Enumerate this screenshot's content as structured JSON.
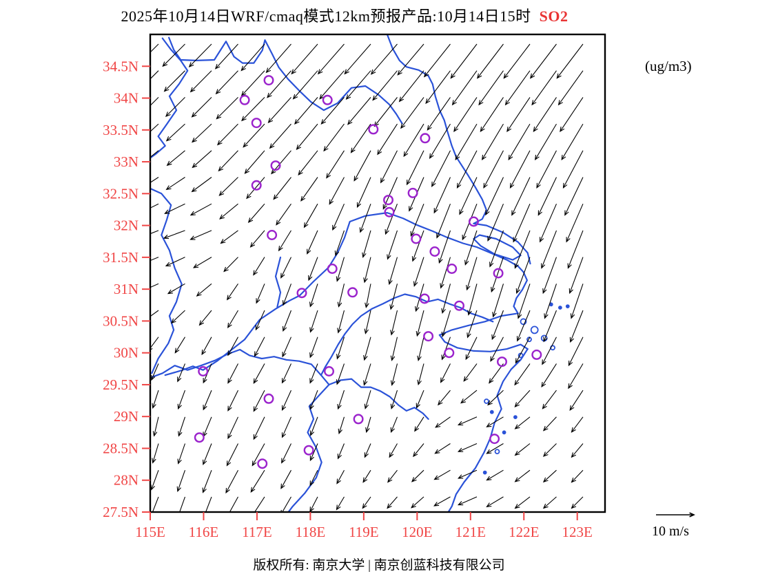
{
  "title": {
    "main": "2025年10月14日WRF/cmaq模式12km预报产品:10月14日15时",
    "species": "SO2"
  },
  "units_label": "(ug/m3)",
  "wind_legend": {
    "label": "10 m/s",
    "speed_m_s": 10
  },
  "footer": "版权所有: 南京大学 | 南京创蓝科技有限公司",
  "colors": {
    "axis_label": "#f04545",
    "species": "#e93434",
    "coast": "#2a52d8",
    "station": "#9b23cc",
    "arrow": "#000000",
    "frame": "#000000"
  },
  "map_extent": {
    "lon_min": 115,
    "lon_max": 123.52,
    "lat_min": 27.5,
    "lat_max": 35.0
  },
  "axes": {
    "lat_ticks": [
      {
        "value": 34.5,
        "label": "34.5N"
      },
      {
        "value": 34.0,
        "label": "34N"
      },
      {
        "value": 33.5,
        "label": "33.5N"
      },
      {
        "value": 33.0,
        "label": "33N"
      },
      {
        "value": 32.5,
        "label": "32.5N"
      },
      {
        "value": 32.0,
        "label": "32N"
      },
      {
        "value": 31.5,
        "label": "31.5N"
      },
      {
        "value": 31.0,
        "label": "31N"
      },
      {
        "value": 30.5,
        "label": "30.5N"
      },
      {
        "value": 30.0,
        "label": "30N"
      },
      {
        "value": 29.5,
        "label": "29.5N"
      },
      {
        "value": 29.0,
        "label": "29N"
      },
      {
        "value": 28.5,
        "label": "28.5N"
      },
      {
        "value": 28.0,
        "label": "28N"
      },
      {
        "value": 27.5,
        "label": "27.5N"
      }
    ],
    "lon_ticks": [
      {
        "value": 115,
        "label": "115E"
      },
      {
        "value": 116,
        "label": "116E"
      },
      {
        "value": 117,
        "label": "117E"
      },
      {
        "value": 118,
        "label": "118E"
      },
      {
        "value": 119,
        "label": "119E"
      },
      {
        "value": 120,
        "label": "120E"
      },
      {
        "value": 121,
        "label": "121E"
      },
      {
        "value": 122,
        "label": "122E"
      },
      {
        "value": 123,
        "label": "123E"
      }
    ]
  },
  "stations": [
    [
      117.22,
      34.28
    ],
    [
      116.77,
      33.97
    ],
    [
      118.32,
      33.97
    ],
    [
      119.18,
      33.51
    ],
    [
      120.15,
      33.37
    ],
    [
      116.99,
      33.61
    ],
    [
      117.35,
      32.94
    ],
    [
      116.99,
      32.63
    ],
    [
      119.92,
      32.51
    ],
    [
      119.46,
      32.4
    ],
    [
      119.48,
      32.21
    ],
    [
      121.06,
      32.06
    ],
    [
      117.28,
      31.85
    ],
    [
      119.98,
      31.79
    ],
    [
      120.33,
      31.59
    ],
    [
      120.65,
      31.32
    ],
    [
      121.52,
      31.25
    ],
    [
      118.41,
      31.32
    ],
    [
      120.14,
      30.85
    ],
    [
      120.79,
      30.74
    ],
    [
      117.84,
      30.94
    ],
    [
      118.79,
      30.95
    ],
    [
      120.21,
      30.26
    ],
    [
      120.6,
      30.0
    ],
    [
      122.24,
      29.97
    ],
    [
      121.59,
      29.86
    ],
    [
      115.99,
      29.71
    ],
    [
      118.35,
      29.71
    ],
    [
      117.22,
      29.28
    ],
    [
      118.9,
      28.96
    ],
    [
      115.92,
      28.67
    ],
    [
      117.97,
      28.47
    ],
    [
      117.1,
      28.26
    ],
    [
      121.45,
      28.65
    ]
  ],
  "wind_field": {
    "lon_min": 115,
    "lon_step": 1,
    "lat_max": 35,
    "lat_step": -1,
    "u": [
      [
        -6,
        -6,
        -6,
        -7,
        -7,
        -7,
        -7,
        -7,
        -7,
        -7
      ],
      [
        -5,
        -5,
        -6,
        -6,
        -6,
        -6,
        -6,
        -6,
        -6,
        -6
      ],
      [
        -4,
        -5,
        -5,
        -5,
        -4,
        -4,
        -5,
        -5,
        -5,
        -5
      ],
      [
        -5,
        -6,
        -4,
        -3,
        -2,
        -3,
        -3,
        -4,
        -4,
        -4
      ],
      [
        -5,
        -4,
        -2,
        -2,
        -1,
        -2,
        -2,
        -3,
        -3,
        -3
      ],
      [
        -2,
        -2,
        -3,
        -2,
        -2,
        -1,
        -3,
        -4,
        -4,
        -4
      ],
      [
        -1,
        -2,
        -3,
        -2,
        -1,
        -2,
        -5,
        -4,
        -3,
        -3
      ],
      [
        -2,
        -2,
        -4,
        -2,
        -2,
        -3,
        -5,
        -4,
        -3,
        -3
      ]
    ],
    "v": [
      [
        -6,
        -6,
        -7,
        -8,
        -8,
        -8,
        -9,
        -9,
        -9,
        -9
      ],
      [
        -5,
        -5,
        -6,
        -7,
        -7,
        -8,
        -9,
        -9,
        -9,
        -9
      ],
      [
        -3,
        -4,
        -6,
        -6,
        -8,
        -9,
        -10,
        -10,
        -10,
        -10
      ],
      [
        -2,
        -2,
        -4,
        -6,
        -7,
        -8,
        -9,
        -10,
        -10,
        -10
      ],
      [
        -2,
        -3,
        -5,
        -6,
        -6,
        -7,
        -8,
        -9,
        -9,
        -9
      ],
      [
        -4,
        -5,
        -5,
        -5,
        -6,
        -6,
        -5,
        -6,
        -7,
        -7
      ],
      [
        -5,
        -5,
        -6,
        -5,
        -4,
        -4,
        -2,
        -3,
        -4,
        -4
      ],
      [
        -5,
        -6,
        -6,
        -4,
        -3,
        -3,
        -2,
        -3,
        -3,
        -3
      ]
    ]
  },
  "geography": {
    "borders": [
      [
        [
          115.35,
          34.95
        ],
        [
          115.44,
          34.76
        ],
        [
          115.57,
          34.6
        ],
        [
          115.86,
          34.59
        ],
        [
          116.2,
          34.6
        ],
        [
          116.42,
          34.89
        ],
        [
          116.57,
          34.65
        ],
        [
          116.73,
          34.55
        ],
        [
          116.94,
          34.55
        ],
        [
          117.1,
          34.75
        ],
        [
          117.15,
          34.91
        ]
      ],
      [
        [
          117.15,
          34.91
        ],
        [
          117.28,
          34.7
        ],
        [
          117.41,
          34.48
        ],
        [
          117.58,
          34.3
        ],
        [
          117.8,
          34.11
        ],
        [
          118.01,
          33.94
        ],
        [
          118.25,
          33.81
        ],
        [
          118.51,
          33.92
        ],
        [
          118.77,
          34.16
        ],
        [
          119.03,
          34.19
        ],
        [
          119.28,
          34.05
        ],
        [
          119.48,
          33.9
        ],
        [
          119.61,
          33.75
        ],
        [
          119.72,
          33.6
        ]
      ],
      [
        [
          115.23,
          34.94
        ],
        [
          115.39,
          34.76
        ],
        [
          115.57,
          34.59
        ],
        [
          115.7,
          34.43
        ],
        [
          115.54,
          34.22
        ],
        [
          115.36,
          34.03
        ],
        [
          115.49,
          33.81
        ],
        [
          115.31,
          33.59
        ],
        [
          115.15,
          33.4
        ],
        [
          115.28,
          33.25
        ],
        [
          115.1,
          33.12
        ],
        [
          115.0,
          33.06
        ]
      ],
      [
        [
          115.0,
          32.58
        ],
        [
          115.21,
          32.5
        ],
        [
          115.39,
          32.32
        ],
        [
          115.31,
          32.09
        ],
        [
          115.21,
          31.85
        ],
        [
          115.36,
          31.61
        ],
        [
          115.46,
          31.33
        ],
        [
          115.59,
          31.08
        ],
        [
          115.49,
          30.8
        ],
        [
          115.36,
          30.58
        ],
        [
          115.44,
          30.36
        ],
        [
          115.34,
          30.15
        ],
        [
          115.15,
          29.91
        ],
        [
          115.03,
          29.68
        ]
      ],
      [
        [
          115.0,
          29.61
        ],
        [
          115.23,
          29.68
        ],
        [
          115.46,
          29.8
        ],
        [
          115.7,
          29.73
        ],
        [
          115.95,
          29.8
        ],
        [
          116.21,
          29.88
        ],
        [
          116.45,
          29.98
        ],
        [
          116.68,
          30.05
        ],
        [
          116.86,
          29.96
        ],
        [
          117.09,
          29.91
        ],
        [
          117.32,
          29.94
        ],
        [
          117.55,
          29.89
        ],
        [
          117.79,
          29.87
        ],
        [
          118.02,
          29.82
        ],
        [
          118.2,
          29.65
        ],
        [
          118.35,
          29.5
        ],
        [
          118.56,
          29.57
        ],
        [
          118.77,
          29.59
        ],
        [
          118.95,
          29.46
        ],
        [
          119.13,
          29.46
        ],
        [
          119.31,
          29.4
        ],
        [
          119.49,
          29.31
        ],
        [
          119.65,
          29.18
        ],
        [
          119.8,
          29.09
        ],
        [
          119.95,
          29.14
        ],
        [
          120.11,
          29.05
        ],
        [
          120.21,
          28.96
        ]
      ],
      [
        [
          118.35,
          29.5
        ],
        [
          118.14,
          29.31
        ],
        [
          117.98,
          29.16
        ],
        [
          118.06,
          28.96
        ],
        [
          117.95,
          28.75
        ],
        [
          118.11,
          28.51
        ],
        [
          118.21,
          28.28
        ],
        [
          118.11,
          28.04
        ],
        [
          117.9,
          27.8
        ],
        [
          117.67,
          27.59
        ],
        [
          117.57,
          27.48
        ]
      ],
      [
        [
          118.2,
          29.65
        ],
        [
          118.28,
          29.78
        ],
        [
          118.39,
          29.93
        ],
        [
          118.52,
          30.13
        ],
        [
          118.65,
          30.3
        ],
        [
          118.79,
          30.45
        ],
        [
          118.95,
          30.58
        ],
        [
          119.15,
          30.69
        ],
        [
          119.36,
          30.77
        ],
        [
          119.57,
          30.86
        ],
        [
          119.77,
          30.92
        ],
        [
          119.98,
          30.88
        ],
        [
          120.19,
          30.8
        ],
        [
          120.39,
          30.84
        ],
        [
          120.6,
          30.77
        ],
        [
          120.81,
          30.71
        ],
        [
          121.01,
          30.62
        ],
        [
          121.22,
          30.56
        ],
        [
          121.42,
          30.49
        ]
      ],
      [
        [
          117.44,
          31.5
        ],
        [
          117.35,
          31.2
        ],
        [
          117.44,
          30.95
        ],
        [
          117.38,
          30.72
        ]
      ]
    ],
    "coast": [
      [
        [
          119.44,
          35.0
        ],
        [
          119.54,
          34.78
        ],
        [
          119.67,
          34.59
        ],
        [
          119.8,
          34.49
        ],
        [
          120.03,
          34.44
        ],
        [
          120.21,
          34.35
        ],
        [
          120.29,
          34.22
        ],
        [
          120.34,
          34.03
        ],
        [
          120.42,
          33.81
        ],
        [
          120.51,
          33.65
        ],
        [
          120.57,
          33.47
        ],
        [
          120.65,
          33.25
        ],
        [
          120.73,
          33.08
        ],
        [
          120.83,
          32.95
        ],
        [
          120.96,
          32.78
        ],
        [
          121.09,
          32.6
        ],
        [
          121.22,
          32.41
        ],
        [
          121.3,
          32.24
        ],
        [
          121.22,
          32.1
        ],
        [
          121.06,
          32.03
        ]
      ],
      [
        [
          121.06,
          32.03
        ],
        [
          121.3,
          32.0
        ],
        [
          121.61,
          31.89
        ],
        [
          121.89,
          31.74
        ],
        [
          122.07,
          31.57
        ],
        [
          122.12,
          31.4
        ]
      ],
      [
        [
          121.17,
          31.85
        ],
        [
          121.48,
          31.79
        ],
        [
          121.79,
          31.66
        ],
        [
          121.94,
          31.53
        ],
        [
          121.79,
          31.46
        ],
        [
          121.45,
          31.55
        ],
        [
          121.19,
          31.68
        ],
        [
          121.06,
          31.79
        ],
        [
          121.17,
          31.85
        ]
      ],
      [
        [
          121.99,
          31.27
        ],
        [
          122.06,
          31.14
        ],
        [
          121.97,
          30.99
        ],
        [
          121.86,
          30.86
        ],
        [
          121.81,
          30.73
        ],
        [
          121.89,
          30.62
        ]
      ],
      [
        [
          121.89,
          30.62
        ],
        [
          121.58,
          30.58
        ],
        [
          121.27,
          30.49
        ],
        [
          120.96,
          30.43
        ],
        [
          120.65,
          30.36
        ],
        [
          120.42,
          30.28
        ]
      ],
      [
        [
          120.42,
          30.28
        ],
        [
          120.52,
          30.17
        ],
        [
          120.75,
          30.08
        ],
        [
          121.06,
          30.03
        ],
        [
          121.37,
          30.02
        ],
        [
          121.68,
          30.06
        ],
        [
          121.94,
          30.13
        ],
        [
          122.07,
          30.06
        ]
      ],
      [
        [
          122.07,
          30.06
        ],
        [
          121.94,
          29.89
        ],
        [
          121.76,
          29.74
        ],
        [
          121.61,
          29.55
        ],
        [
          121.5,
          29.33
        ],
        [
          121.58,
          29.12
        ],
        [
          121.45,
          28.9
        ],
        [
          121.37,
          28.66
        ],
        [
          121.25,
          28.43
        ],
        [
          121.09,
          28.19
        ],
        [
          120.88,
          27.97
        ],
        [
          120.73,
          27.78
        ],
        [
          120.65,
          27.59
        ],
        [
          120.57,
          27.48
        ]
      ]
    ],
    "river": [
      [
        [
          115.28,
          29.65
        ],
        [
          115.57,
          29.72
        ],
        [
          115.8,
          29.79
        ],
        [
          115.99,
          29.73
        ],
        [
          116.25,
          29.87
        ],
        [
          116.51,
          30.04
        ],
        [
          116.77,
          30.21
        ],
        [
          117.05,
          30.52
        ],
        [
          117.35,
          30.69
        ],
        [
          117.61,
          30.82
        ],
        [
          117.8,
          30.9
        ],
        [
          118.06,
          31.12
        ],
        [
          118.34,
          31.34
        ],
        [
          118.51,
          31.57
        ],
        [
          118.64,
          31.81
        ],
        [
          118.74,
          32.06
        ],
        [
          119.03,
          32.15
        ],
        [
          119.44,
          32.2
        ],
        [
          119.74,
          32.11
        ],
        [
          119.99,
          32.01
        ],
        [
          120.29,
          31.91
        ],
        [
          120.57,
          31.81
        ],
        [
          120.86,
          31.72
        ],
        [
          121.12,
          31.66
        ],
        [
          121.43,
          31.55
        ],
        [
          121.68,
          31.46
        ],
        [
          121.89,
          31.36
        ],
        [
          121.99,
          31.27
        ]
      ]
    ],
    "islands": [
      [
        121.99,
        30.49,
        4
      ],
      [
        122.2,
        30.36,
        5
      ],
      [
        122.38,
        30.23,
        4
      ],
      [
        122.1,
        30.21,
        3
      ],
      [
        122.54,
        30.08,
        3
      ],
      [
        121.94,
        29.96,
        3
      ],
      [
        122.51,
        30.76,
        2
      ],
      [
        122.68,
        30.71,
        2
      ],
      [
        122.82,
        30.73,
        2
      ],
      [
        121.3,
        29.24,
        3
      ],
      [
        121.4,
        29.07,
        2
      ],
      [
        121.5,
        28.45,
        3
      ],
      [
        121.27,
        28.12,
        2
      ],
      [
        121.63,
        28.75,
        2
      ],
      [
        121.84,
        28.99,
        2
      ]
    ]
  }
}
